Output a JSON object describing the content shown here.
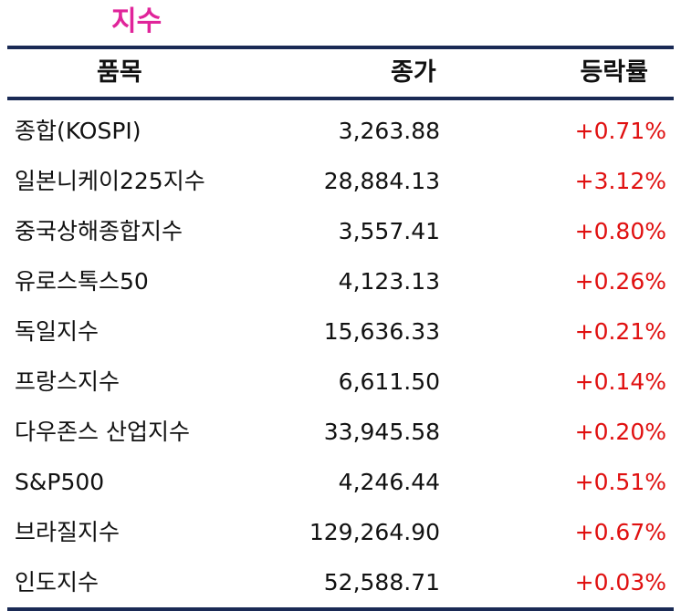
{
  "title": "지수",
  "headers": {
    "item": "품목",
    "close": "종가",
    "change": "등락률"
  },
  "rows": [
    {
      "name": "종합(KOSPI)",
      "close": "3,263.88",
      "change": "+0.71%"
    },
    {
      "name": "일본니케이225지수",
      "close": "28,884.13",
      "change": "+3.12%"
    },
    {
      "name": "중국상해종합지수",
      "close": "3,557.41",
      "change": "+0.80%"
    },
    {
      "name": "유로스톡스50",
      "close": "4,123.13",
      "change": "+0.26%"
    },
    {
      "name": "독일지수",
      "close": "15,636.33",
      "change": "+0.21%"
    },
    {
      "name": "프랑스지수",
      "close": "6,611.50",
      "change": "+0.14%"
    },
    {
      "name": "다우존스 산업지수",
      "close": "33,945.58",
      "change": "+0.20%"
    },
    {
      "name": "S&P500",
      "close": "4,246.44",
      "change": "+0.51%"
    },
    {
      "name": "브라질지수",
      "close": "129,264.90",
      "change": "+0.67%"
    },
    {
      "name": "인도지수",
      "close": "52,588.71",
      "change": "+0.03%"
    }
  ],
  "colors": {
    "title": "#e0249a",
    "rule": "#1a2a55",
    "positive_change": "#e01010"
  }
}
